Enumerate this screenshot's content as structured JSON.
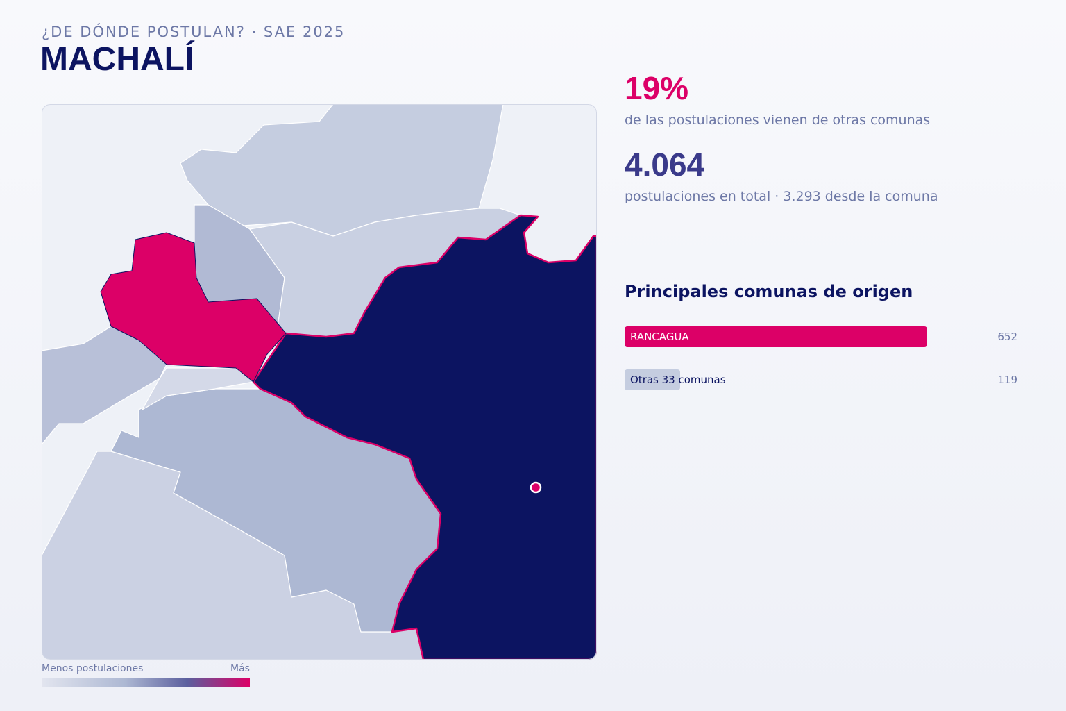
{
  "header": {
    "kicker": "¿DE DÓNDE POSTULAN? · SAE 2025",
    "title": "MACHALÍ"
  },
  "stats": [
    {
      "value": "19%",
      "label": "de las postulaciones vienen de otras comunas"
    },
    {
      "value": "4.064",
      "label": "postulaciones en total · 3.293 desde la comuna"
    }
  ],
  "origins": {
    "title": "Principales comunas de origen",
    "rows": [
      {
        "name": "RANCAGUA",
        "value": 652,
        "color": "#dc0067"
      },
      {
        "name": "Otras 33 comunas",
        "value": 119,
        "color": "#c5cde0"
      }
    ]
  },
  "legend": {
    "low": "Menos postulaciones",
    "high": "Más"
  }
}
